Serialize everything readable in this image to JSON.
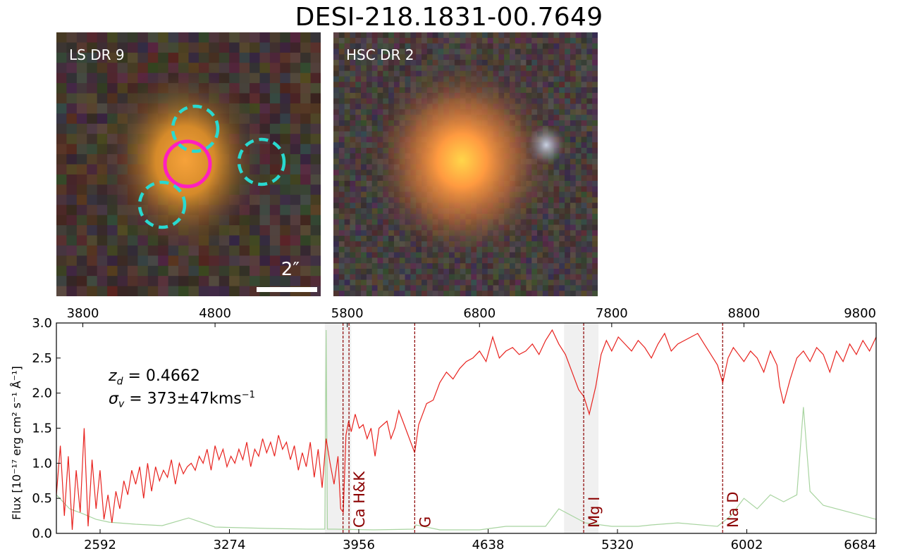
{
  "title": "DESI-218.1831-00.7649",
  "panels": {
    "left": {
      "label": "LS DR 9",
      "scalebar_label": "2″"
    },
    "right": {
      "label": "HSC DR 2"
    }
  },
  "colors": {
    "spectrum": "#e8231f",
    "noise": "#a8d4a0",
    "line_marker": "#8b0000",
    "shade": "#f0f0f0",
    "lens_circle": "#ff1fbf",
    "source_circle": "#29d9d0"
  },
  "annotations": {
    "redshift_label": "z",
    "redshift_sub": "d",
    "redshift_value": "= 0.4662",
    "dispersion_label": "σ",
    "dispersion_sub": "v",
    "dispersion_value": "= 373±47kms",
    "dispersion_exp": "−1"
  },
  "chart_data": {
    "type": "line",
    "ylabel": "Flux [10⁻¹⁷ erg cm² s⁻¹ Å⁻¹]",
    "ylim": [
      0.0,
      3.0
    ],
    "yticks": [
      "0.0",
      "0.5",
      "1.0",
      "1.5",
      "2.0",
      "2.5",
      "3.0"
    ],
    "xlim_observed": [
      3600,
      9800
    ],
    "xticks_top": [
      "3800",
      "4800",
      "5800",
      "6800",
      "7800",
      "8800",
      "9800"
    ],
    "xticks_bottom": [
      "2592",
      "3274",
      "3956",
      "4638",
      "5320",
      "6002",
      "6684"
    ],
    "shaded_regions_observed": [
      [
        5630,
        5830
      ],
      [
        7440,
        7700
      ]
    ],
    "line_markers": [
      {
        "label": "",
        "wavelength_observed": 5768
      },
      {
        "label": "Ca H&K",
        "wavelength_observed": 5813
      },
      {
        "label": "G",
        "wavelength_observed": 6310
      },
      {
        "label": "Mg I",
        "wavelength_observed": 7588
      },
      {
        "label": "Na D",
        "wavelength_observed": 8639
      }
    ],
    "series": [
      {
        "x": [
          3600,
          3630,
          3660,
          3690,
          3720,
          3750,
          3780,
          3810,
          3840,
          3870,
          3900,
          3930,
          3960,
          3990,
          4020,
          4050,
          4080,
          4110,
          4140,
          4170,
          4200,
          4230,
          4260,
          4290,
          4320,
          4350,
          4380,
          4410,
          4440,
          4470,
          4500,
          4530,
          4560,
          4590,
          4620,
          4650,
          4680,
          4710,
          4740,
          4770,
          4800,
          4830,
          4860,
          4890,
          4920,
          4950,
          4980,
          5010,
          5040,
          5070,
          5100,
          5130,
          5160,
          5190,
          5220,
          5250,
          5280,
          5310,
          5340,
          5370,
          5400,
          5430,
          5460,
          5490,
          5520,
          5550,
          5580,
          5610,
          5640,
          5670,
          5700,
          5730,
          5750,
          5770,
          5790,
          5810,
          5830,
          5860,
          5890,
          5920,
          5950,
          5980,
          6010,
          6040,
          6070,
          6100,
          6130,
          6160,
          6190,
          6220,
          6250,
          6280,
          6310,
          6340,
          6370,
          6400,
          6450,
          6500,
          6550,
          6600,
          6650,
          6700,
          6750,
          6800,
          6850,
          6900,
          6950,
          7000,
          7050,
          7100,
          7150,
          7200,
          7250,
          7300,
          7350,
          7400,
          7450,
          7500,
          7550,
          7590,
          7630,
          7680,
          7720,
          7760,
          7800,
          7850,
          7900,
          7950,
          8000,
          8050,
          8100,
          8150,
          8200,
          8250,
          8300,
          8350,
          8400,
          8450,
          8500,
          8550,
          8600,
          8640,
          8680,
          8720,
          8760,
          8800,
          8850,
          8900,
          8950,
          9000,
          9050,
          9070,
          9100,
          9150,
          9200,
          9250,
          9300,
          9350,
          9400,
          9450,
          9500,
          9550,
          9600,
          9650,
          9700,
          9750,
          9800
        ],
        "y": [
          0.55,
          1.25,
          0.25,
          1.1,
          0.05,
          0.9,
          0.3,
          1.5,
          0.1,
          1.05,
          0.35,
          0.9,
          0.2,
          0.55,
          0.15,
          0.6,
          0.35,
          0.75,
          0.55,
          0.9,
          0.7,
          0.95,
          0.5,
          1.0,
          0.6,
          0.95,
          0.75,
          0.9,
          0.8,
          1.05,
          0.7,
          1.0,
          0.85,
          0.95,
          1.0,
          0.9,
          1.1,
          1.0,
          1.2,
          0.9,
          1.25,
          1.05,
          1.2,
          0.95,
          1.1,
          1.0,
          1.2,
          1.05,
          1.3,
          0.95,
          1.2,
          1.1,
          1.35,
          1.15,
          1.3,
          1.1,
          1.4,
          1.2,
          1.3,
          1.05,
          1.25,
          0.9,
          1.15,
          0.95,
          1.3,
          0.8,
          1.2,
          0.65,
          1.35,
          1.0,
          0.7,
          1.1,
          0.35,
          0.3,
          1.4,
          1.6,
          1.45,
          1.7,
          1.5,
          1.55,
          1.35,
          1.5,
          1.1,
          1.5,
          1.55,
          1.6,
          1.35,
          1.5,
          1.75,
          1.6,
          1.45,
          1.3,
          1.15,
          1.55,
          1.7,
          1.85,
          1.9,
          2.15,
          2.3,
          2.2,
          2.35,
          2.45,
          2.5,
          2.6,
          2.45,
          2.8,
          2.5,
          2.6,
          2.65,
          2.55,
          2.6,
          2.7,
          2.55,
          2.75,
          2.9,
          2.7,
          2.55,
          2.3,
          2.05,
          1.95,
          1.7,
          2.1,
          2.55,
          2.75,
          2.6,
          2.8,
          2.7,
          2.6,
          2.75,
          2.65,
          2.5,
          2.7,
          2.85,
          2.6,
          2.7,
          2.75,
          2.8,
          2.85,
          2.7,
          2.55,
          2.4,
          2.15,
          2.5,
          2.65,
          2.55,
          2.45,
          2.6,
          2.5,
          2.3,
          2.6,
          2.4,
          2.1,
          1.85,
          2.2,
          2.5,
          2.6,
          2.45,
          2.65,
          2.55,
          2.3,
          2.6,
          2.45,
          2.7,
          2.55,
          2.75,
          2.6,
          2.8
        ]
      },
      {
        "x": [
          3600,
          3700,
          3800,
          3900,
          4000,
          4200,
          4400,
          4600,
          4800,
          5000,
          5200,
          5500,
          5630,
          5640,
          5650,
          5700,
          6000,
          6300,
          6320,
          6500,
          6800,
          7000,
          7300,
          7400,
          7500,
          7600,
          7800,
          8000,
          8100,
          8300,
          8600,
          8700,
          8800,
          8900,
          9000,
          9100,
          9200,
          9250,
          9300,
          9400,
          9500,
          9600,
          9700,
          9800
        ],
        "y": [
          0.55,
          0.35,
          0.28,
          0.2,
          0.16,
          0.13,
          0.11,
          0.22,
          0.09,
          0.08,
          0.07,
          0.06,
          0.06,
          2.9,
          0.06,
          0.06,
          0.05,
          0.06,
          0.12,
          0.05,
          0.05,
          0.1,
          0.1,
          0.35,
          0.25,
          0.15,
          0.1,
          0.1,
          0.12,
          0.15,
          0.1,
          0.25,
          0.5,
          0.35,
          0.55,
          0.45,
          0.55,
          1.8,
          0.6,
          0.4,
          0.35,
          0.3,
          0.25,
          0.2
        ]
      }
    ]
  }
}
